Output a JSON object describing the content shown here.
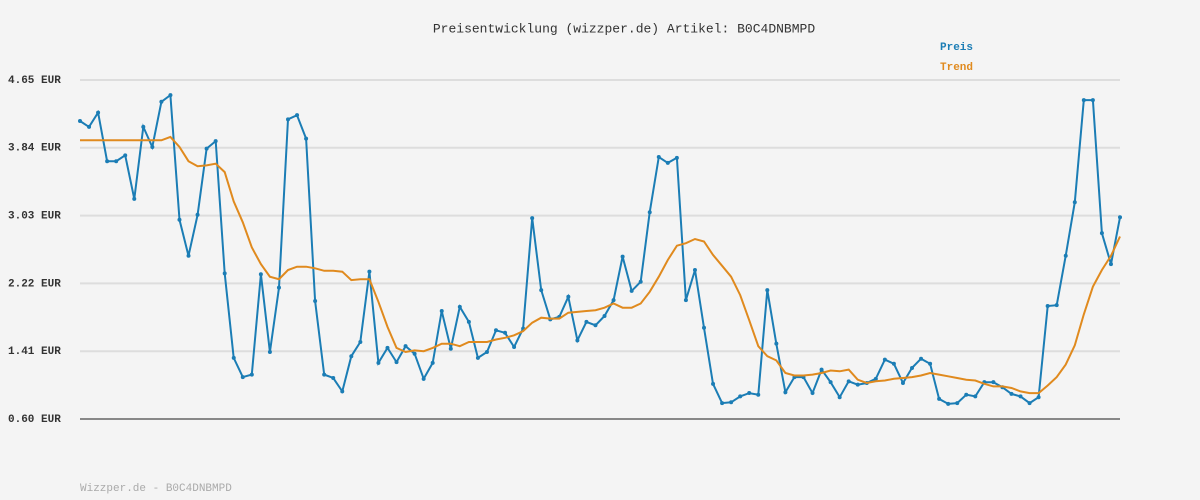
{
  "chart_data": {
    "type": "line",
    "title": "Preisentwicklung (wizzper.de) Artikel: B0C4DNBMPD",
    "footer": "Wizzper.de - B0C4DNBMPD",
    "categories": [
      null,
      null,
      null,
      null,
      null,
      null,
      null,
      null,
      null,
      null,
      null,
      null,
      null,
      null,
      null,
      null,
      null,
      null,
      null,
      null,
      null,
      null,
      null,
      null,
      null,
      null,
      null,
      null,
      null,
      null,
      null,
      null,
      null,
      null,
      null,
      null,
      null,
      null,
      null,
      null,
      null,
      null,
      null,
      null,
      null,
      null,
      null,
      null,
      null,
      null,
      null,
      null,
      null,
      null,
      null,
      null,
      null,
      null,
      null,
      null,
      null,
      null,
      null,
      null,
      null,
      null,
      null,
      null,
      null,
      null,
      null,
      null,
      null,
      null,
      null,
      null,
      null,
      null,
      null,
      null,
      null,
      null,
      null,
      null,
      null,
      null,
      null,
      null,
      null,
      null,
      null,
      null,
      null,
      null,
      null,
      null,
      null,
      null,
      null,
      null,
      null,
      null,
      null,
      null,
      null,
      null,
      null,
      null,
      null,
      null,
      null,
      null,
      null,
      null,
      null,
      null
    ],
    "series": [
      {
        "name": "Preis",
        "color": "#1b7db5",
        "markers": true,
        "values": [
          4.16,
          4.09,
          4.26,
          3.68,
          3.68,
          3.75,
          3.23,
          4.09,
          3.85,
          4.39,
          4.47,
          2.98,
          2.55,
          3.04,
          3.83,
          3.92,
          2.34,
          1.33,
          1.1,
          1.13,
          2.33,
          1.4,
          2.17,
          4.18,
          4.23,
          3.95,
          2.01,
          1.13,
          1.09,
          0.93,
          1.35,
          1.52,
          2.36,
          1.27,
          1.45,
          1.28,
          1.47,
          1.38,
          1.08,
          1.27,
          1.89,
          1.44,
          1.94,
          1.76,
          1.33,
          1.4,
          1.66,
          1.63,
          1.46,
          1.68,
          3.0,
          2.14,
          1.79,
          1.82,
          2.06,
          1.54,
          1.76,
          1.72,
          1.83,
          2.02,
          2.54,
          2.13,
          2.24,
          3.07,
          3.73,
          3.66,
          3.72,
          2.02,
          2.38,
          1.69,
          1.02,
          0.79,
          0.8,
          0.87,
          0.91,
          0.89,
          2.14,
          1.5,
          0.92,
          1.1,
          1.1,
          0.91,
          1.19,
          1.04,
          0.86,
          1.05,
          1.01,
          1.03,
          1.08,
          1.31,
          1.26,
          1.03,
          1.21,
          1.32,
          1.26,
          0.84,
          0.78,
          0.79,
          0.89,
          0.87,
          1.04,
          1.04,
          0.98,
          0.9,
          0.87,
          0.79,
          0.86,
          1.95,
          1.96,
          2.55,
          3.19,
          4.41,
          4.41,
          2.82,
          2.45,
          3.01
        ]
      },
      {
        "name": "Trend",
        "color": "#e08a1e",
        "markers": false,
        "values": [
          3.93,
          3.93,
          3.93,
          3.93,
          3.93,
          3.93,
          3.93,
          3.93,
          3.93,
          3.93,
          3.97,
          3.85,
          3.68,
          3.62,
          3.63,
          3.65,
          3.55,
          3.2,
          2.95,
          2.65,
          2.45,
          2.3,
          2.27,
          2.38,
          2.42,
          2.42,
          2.4,
          2.37,
          2.37,
          2.36,
          2.26,
          2.27,
          2.27,
          2.0,
          1.7,
          1.45,
          1.4,
          1.42,
          1.41,
          1.45,
          1.5,
          1.5,
          1.47,
          1.52,
          1.52,
          1.52,
          1.55,
          1.57,
          1.6,
          1.65,
          1.75,
          1.81,
          1.8,
          1.8,
          1.87,
          1.88,
          1.89,
          1.9,
          1.93,
          1.98,
          1.93,
          1.93,
          1.98,
          2.12,
          2.3,
          2.5,
          2.67,
          2.7,
          2.75,
          2.72,
          2.56,
          2.43,
          2.3,
          2.08,
          1.78,
          1.47,
          1.35,
          1.3,
          1.15,
          1.12,
          1.12,
          1.13,
          1.15,
          1.18,
          1.17,
          1.19,
          1.07,
          1.03,
          1.05,
          1.06,
          1.08,
          1.09,
          1.1,
          1.12,
          1.15,
          1.13,
          1.11,
          1.09,
          1.07,
          1.06,
          1.02,
          0.99,
          0.99,
          0.97,
          0.93,
          0.91,
          0.91,
          1.0,
          1.1,
          1.25,
          1.48,
          1.85,
          2.18,
          2.38,
          2.55,
          2.78
        ]
      }
    ],
    "ylim": [
      0.6,
      4.65
    ],
    "yticks": [
      {
        "value": 0.6,
        "label": "0.60 EUR"
      },
      {
        "value": 1.41,
        "label": "1.41 EUR"
      },
      {
        "value": 2.22,
        "label": "2.22 EUR"
      },
      {
        "value": 3.03,
        "label": "3.03 EUR"
      },
      {
        "value": 3.84,
        "label": "3.84 EUR"
      },
      {
        "value": 4.65,
        "label": "4.65 EUR"
      }
    ],
    "grid": true
  }
}
